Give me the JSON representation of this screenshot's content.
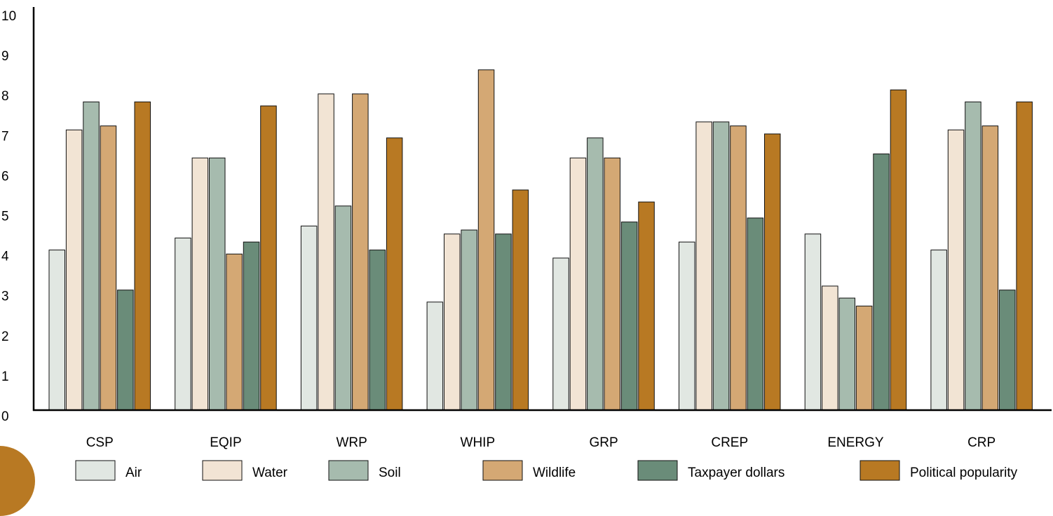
{
  "chart_data": {
    "type": "bar",
    "categories": [
      "CSP",
      "EQIP",
      "WRP",
      "WHIP",
      "GRP",
      "CREP",
      "ENERGY",
      "CRP"
    ],
    "series": [
      {
        "name": "Air",
        "color": "#e1e7e2",
        "values": [
          4.0,
          4.3,
          4.6,
          2.7,
          3.8,
          4.2,
          4.4,
          4.0
        ]
      },
      {
        "name": "Water",
        "color": "#f2e4d4",
        "values": [
          7.0,
          6.3,
          7.9,
          4.4,
          6.3,
          7.2,
          3.1,
          7.0
        ]
      },
      {
        "name": "Soil",
        "color": "#a6bbae",
        "values": [
          7.7,
          6.3,
          5.1,
          4.5,
          6.8,
          7.2,
          2.8,
          7.7
        ]
      },
      {
        "name": "Wildlife",
        "color": "#d4a874",
        "values": [
          7.1,
          3.9,
          7.9,
          8.5,
          6.3,
          7.1,
          2.6,
          7.1
        ]
      },
      {
        "name": "Taxpayer dollars",
        "color": "#6a8c79",
        "values": [
          3.0,
          4.2,
          4.0,
          4.4,
          4.7,
          4.8,
          6.4,
          3.0
        ]
      },
      {
        "name": "Political popularity",
        "color": "#b87923",
        "values": [
          7.7,
          7.6,
          6.8,
          5.5,
          5.2,
          6.9,
          8.0,
          7.7
        ]
      }
    ],
    "ylim": [
      0,
      10
    ],
    "yticks": [
      "0",
      "1",
      "2",
      "3",
      "4",
      "5",
      "6",
      "7",
      "8",
      "9",
      "10"
    ],
    "title": "",
    "xlabel": "",
    "ylabel": "",
    "grid": false,
    "legend_position": "bottom"
  },
  "decor": {
    "corner_color": "#b87923"
  }
}
